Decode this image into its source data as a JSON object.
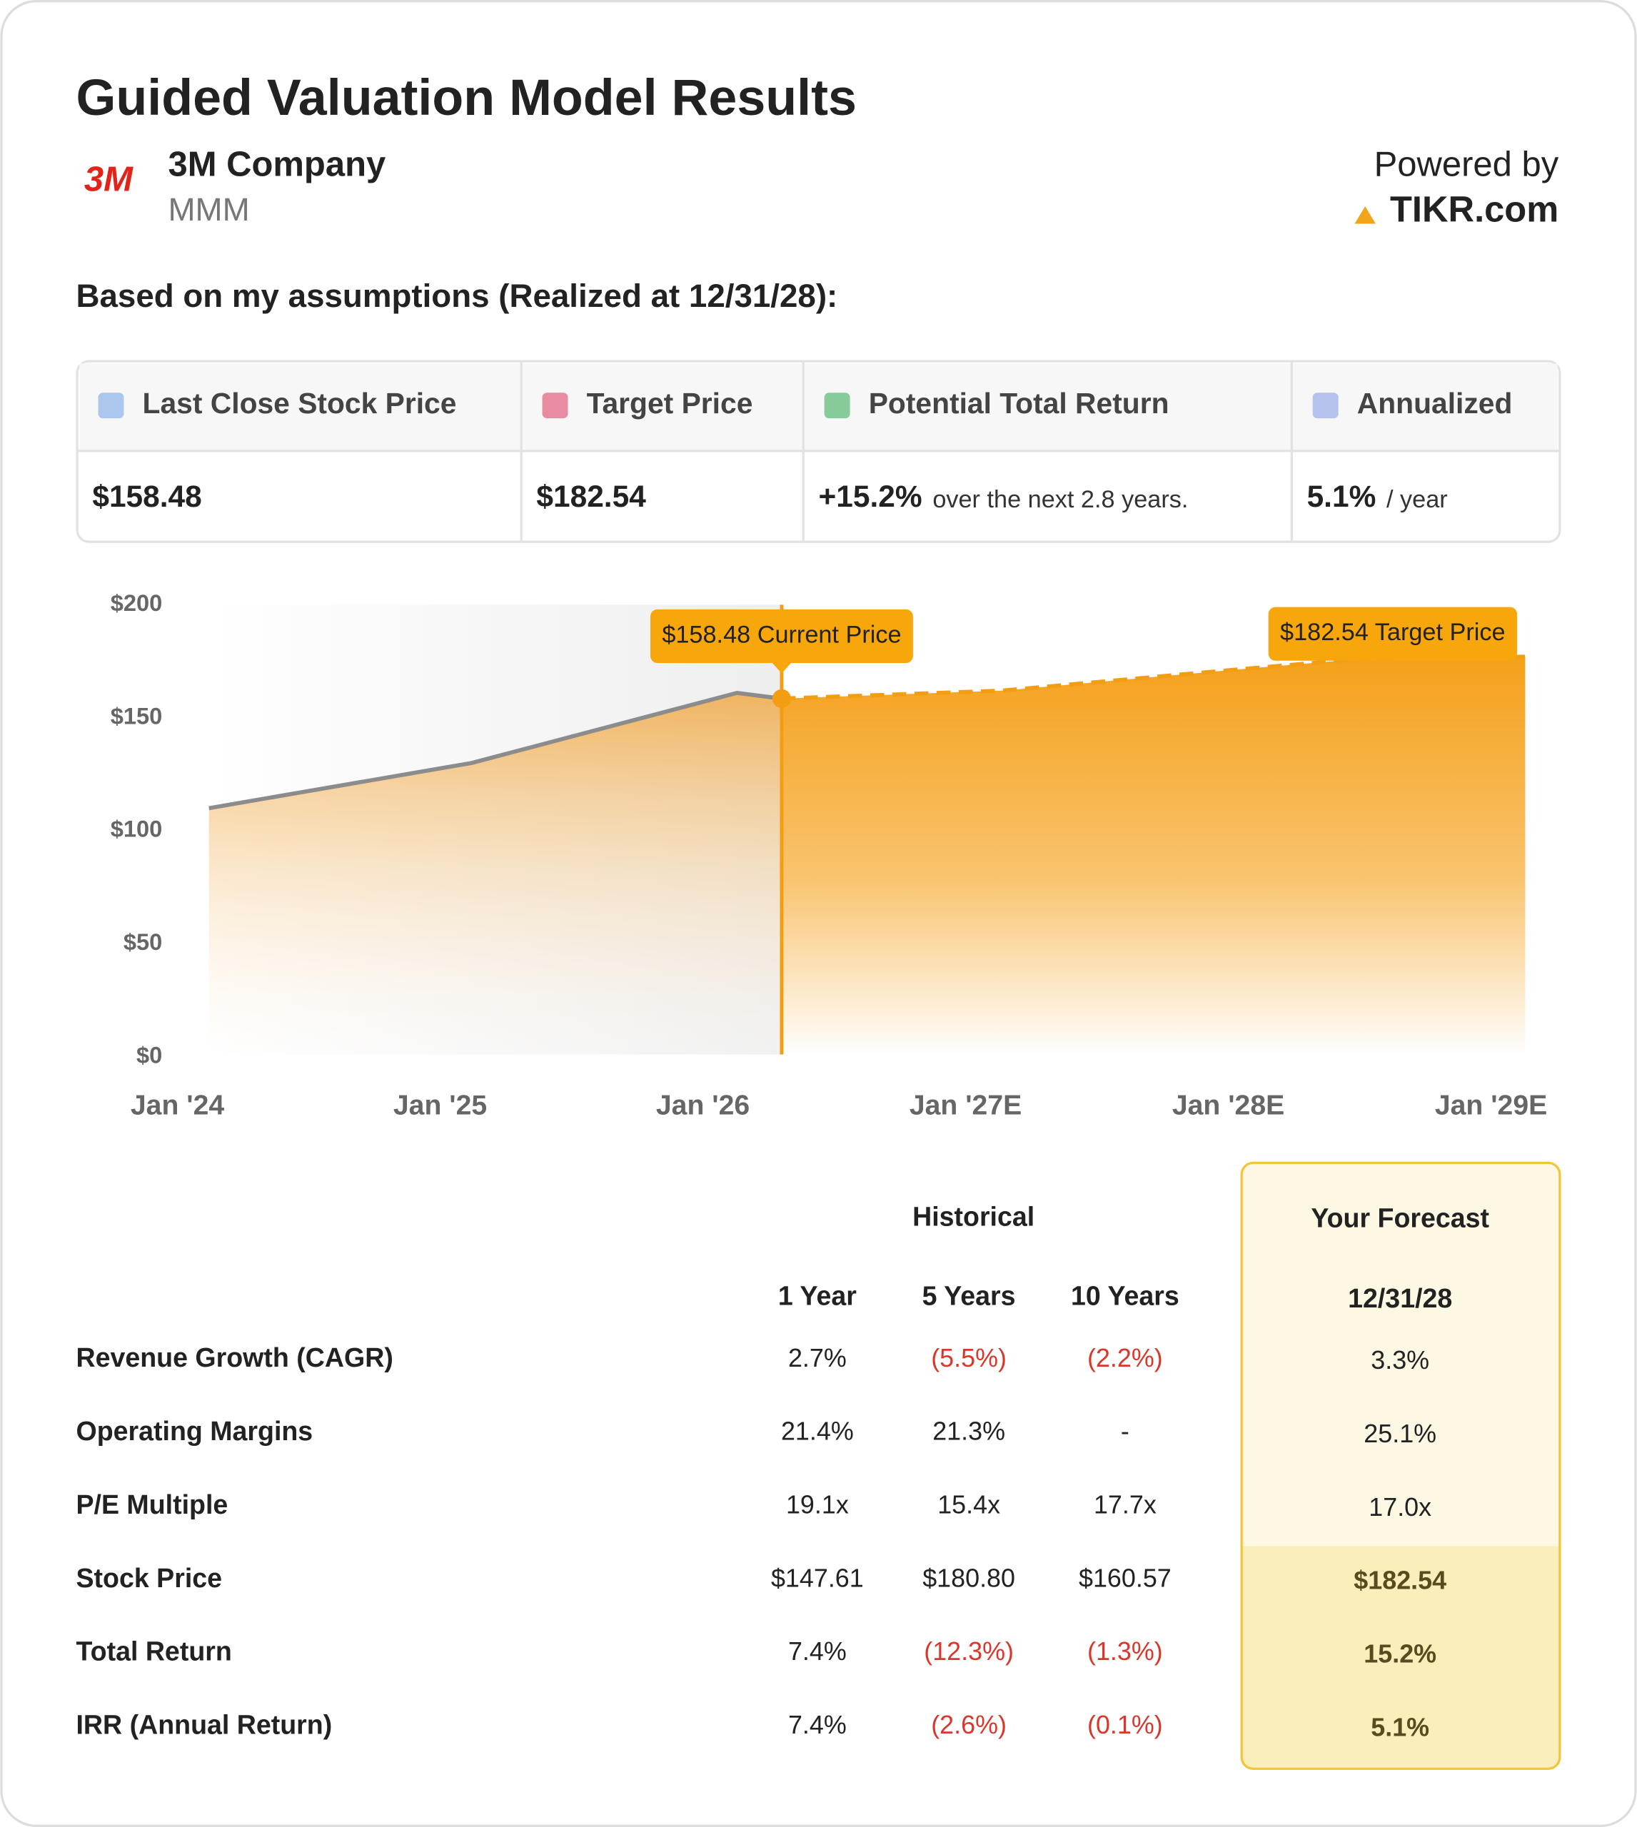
{
  "header": {
    "title": "Guided Valuation Model Results",
    "logo": "3M",
    "company": "3M Company",
    "ticker": "MMM",
    "powered": "Powered by",
    "brand": "TIKR.com"
  },
  "subtitle": "Based on my assumptions (Realized at 12/31/28):",
  "summary": {
    "headers": [
      "Last Close Stock Price",
      "Target Price",
      "Potential Total Return",
      "Annualized"
    ],
    "values": [
      "$158.48",
      "$182.54",
      "+15.2%",
      "5.1%"
    ],
    "notes": [
      null,
      null,
      "over the next 2.8 years.",
      "/ year"
    ]
  },
  "chart_data": {
    "type": "area",
    "ylim": [
      0,
      200
    ],
    "yticks": [
      {
        "value": 0,
        "label": "$0"
      },
      {
        "value": 50,
        "label": "$50"
      },
      {
        "value": 100,
        "label": "$100"
      },
      {
        "value": 150,
        "label": "$150"
      },
      {
        "value": 200,
        "label": "$200"
      }
    ],
    "xlim": [
      2024,
      2029
    ],
    "xticks": [
      {
        "value": 2024,
        "label": "Jan '24"
      },
      {
        "value": 2025,
        "label": "Jan '25"
      },
      {
        "value": 2026,
        "label": "Jan '26"
      },
      {
        "value": 2027,
        "label": "Jan '27E"
      },
      {
        "value": 2028,
        "label": "Jan '28E"
      },
      {
        "value": 2029,
        "label": "Jan '29E"
      }
    ],
    "series": [
      {
        "color": "#8c8c8c",
        "style": "solid",
        "x": [
          2024.12,
          2025.12,
          2026.13,
          2026.3
        ],
        "values": [
          110,
          130,
          161,
          158.48
        ]
      },
      {
        "color": "#f29d12",
        "style": "dashed",
        "x": [
          2026.3,
          2027.14,
          2028.0,
          2028.5,
          2029.13
        ],
        "values": [
          158.48,
          162,
          171,
          176,
          177
        ]
      }
    ],
    "annotations": [
      {
        "text": "$158.48 Current Price",
        "x": 2026.3,
        "value": 158.48
      },
      {
        "text": "$182.54 Target Price",
        "x": 2028.5,
        "value": 182.54
      }
    ]
  },
  "table": {
    "group": "Historical",
    "columns": [
      "1 Year",
      "5 Years",
      "10 Years"
    ],
    "forecast_title": "Your Forecast",
    "forecast_date": "12/31/28",
    "rows": [
      [
        "Revenue Growth (CAGR)",
        "2.7%",
        "(5.5%)",
        "(2.2%)",
        "3.3%"
      ],
      [
        "Operating Margins",
        "21.4%",
        "21.3%",
        "-",
        "25.1%"
      ],
      [
        "P/E Multiple",
        "19.1x",
        "15.4x",
        "17.7x",
        "17.0x"
      ],
      [
        "Stock Price",
        "$147.61",
        "$180.80",
        "$160.57",
        "$182.54"
      ],
      [
        "Total Return",
        "7.4%",
        "(12.3%)",
        "(1.3%)",
        "15.2%"
      ],
      [
        "IRR (Annual Return)",
        "7.4%",
        "(2.6%)",
        "(0.1%)",
        "5.1%"
      ]
    ]
  }
}
